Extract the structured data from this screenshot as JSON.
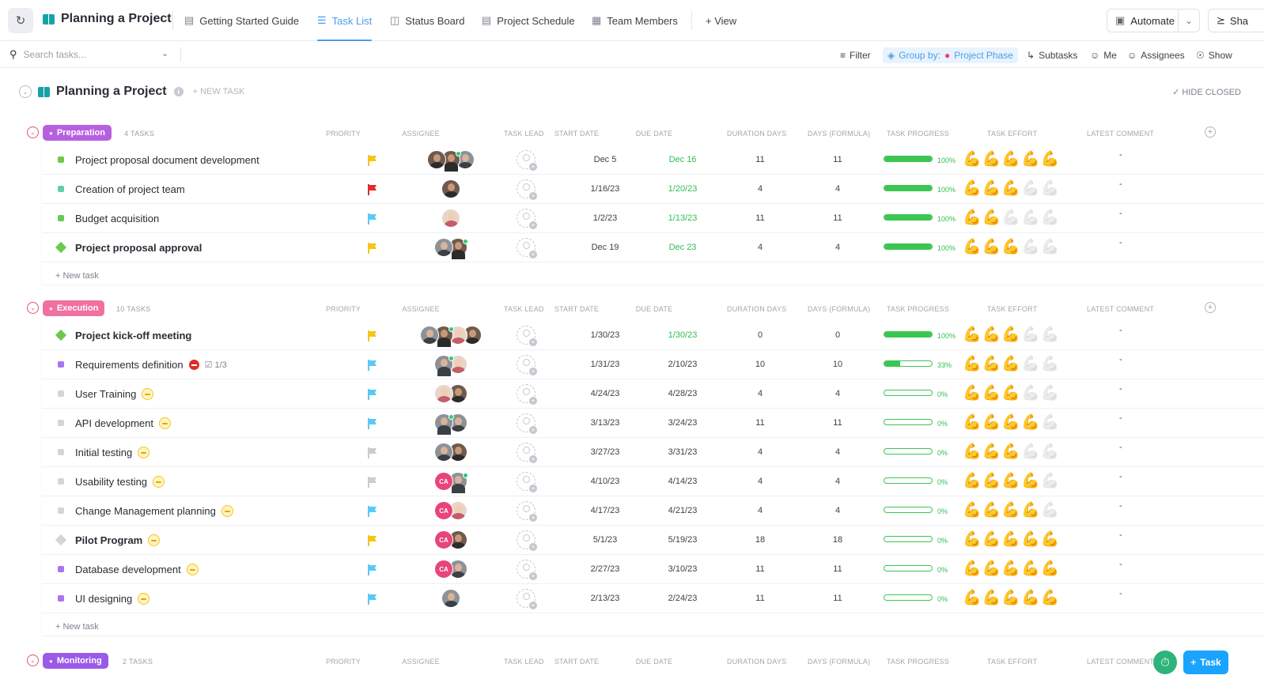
{
  "app": {
    "title": "Planning a Project"
  },
  "tabs": [
    {
      "label": "Getting Started Guide",
      "icon": "doc-icon"
    },
    {
      "label": "Task List",
      "icon": "list-icon",
      "active": true
    },
    {
      "label": "Status Board",
      "icon": "board-icon"
    },
    {
      "label": "Project Schedule",
      "icon": "gantt-icon"
    },
    {
      "label": "Team Members",
      "icon": "table-icon"
    }
  ],
  "add_view_label": "+ View",
  "automate_label": "Automate",
  "share_label": "Sha",
  "toolbar": {
    "search_placeholder": "Search tasks...",
    "filter": "Filter",
    "group_by": "Group by:",
    "group_value": "Project Phase",
    "subtasks": "Subtasks",
    "me": "Me",
    "assignees": "Assignees",
    "show": "Show"
  },
  "list": {
    "title": "Planning a Project",
    "new_task": "+ NEW TASK",
    "hide_closed": "HIDE CLOSED"
  },
  "columns": [
    "PRIORITY",
    "ASSIGNEE",
    "TASK LEAD",
    "START DATE",
    "DUE DATE",
    "DURATION DAYS",
    "DAYS (FORMULA)",
    "TASK PROGRESS",
    "TASK EFFORT",
    "LATEST COMMENT"
  ],
  "colors": {
    "green_date": "#2fbf52",
    "accent": "#4b9ee8"
  },
  "groups": [
    {
      "name": "Preparation",
      "count": "4 TASKS",
      "color": "#b660e0",
      "add_label": "+ New task",
      "tasks": [
        {
          "name": "Project proposal document development",
          "marker": "square",
          "color": "#6bc950",
          "flag": "yellow",
          "assignees": [
            {
              "tone": "dark"
            },
            {
              "tone": "dark",
              "online": true
            },
            {
              "tone": "gray"
            }
          ],
          "start": "Dec 5",
          "due": "Dec 16",
          "due_green": true,
          "duration": "11",
          "formula": "11",
          "progress": 100,
          "pct": "100%",
          "effort": 5,
          "comment": "-"
        },
        {
          "name": "Creation of project team",
          "marker": "square",
          "color": "#5cd2a4",
          "flag": "red",
          "assignees": [
            {
              "tone": "dark"
            }
          ],
          "start": "1/16/23",
          "due": "1/20/23",
          "due_green": true,
          "duration": "4",
          "formula": "4",
          "progress": 100,
          "pct": "100%",
          "effort": 3,
          "comment": "-"
        },
        {
          "name": "Budget acquisition",
          "marker": "square",
          "color": "#6bc950",
          "flag": "blue",
          "assignees": [
            {
              "tone": "light"
            }
          ],
          "start": "1/2/23",
          "due": "1/13/23",
          "due_green": true,
          "duration": "11",
          "formula": "11",
          "progress": 100,
          "pct": "100%",
          "effort": 2,
          "comment": "-"
        },
        {
          "name": "Project proposal approval",
          "marker": "diamond",
          "color": "#6bc950",
          "bold": true,
          "flag": "yellow",
          "assignees": [
            {
              "tone": "gray"
            },
            {
              "tone": "dark",
              "online": true
            }
          ],
          "start": "Dec 19",
          "due": "Dec 23",
          "due_green": true,
          "duration": "4",
          "formula": "4",
          "progress": 100,
          "pct": "100%",
          "effort": 3,
          "comment": "-"
        }
      ]
    },
    {
      "name": "Execution",
      "count": "10 TASKS",
      "color": "#f070a0",
      "add_label": "+ New task",
      "tasks": [
        {
          "name": "Project kick-off meeting",
          "marker": "diamond",
          "color": "#6bc950",
          "bold": true,
          "flag": "yellow",
          "assignees": [
            {
              "tone": "gray"
            },
            {
              "tone": "dark",
              "online": true
            },
            {
              "tone": "light"
            },
            {
              "tone": "dark"
            }
          ],
          "start": "1/30/23",
          "due": "1/30/23",
          "due_green": true,
          "duration": "0",
          "formula": "0",
          "progress": 100,
          "pct": "100%",
          "effort": 3,
          "comment": "-"
        },
        {
          "name": "Requirements definition",
          "marker": "square",
          "color": "#a875f0",
          "flag": "blue",
          "blocked": true,
          "subtasks": "1/3",
          "assignees": [
            {
              "tone": "gray",
              "online": true
            },
            {
              "tone": "light"
            }
          ],
          "start": "1/31/23",
          "due": "2/10/23",
          "duration": "10",
          "formula": "10",
          "progress": 33,
          "pct": "33%",
          "effort": 3,
          "comment": "-"
        },
        {
          "name": "User Training",
          "marker": "square",
          "color": "#d3d5da",
          "flag": "blue",
          "minus": true,
          "assignees": [
            {
              "tone": "light"
            },
            {
              "tone": "dark"
            }
          ],
          "start": "4/24/23",
          "due": "4/28/23",
          "duration": "4",
          "formula": "4",
          "progress": 0,
          "pct": "0%",
          "effort": 3,
          "comment": "-"
        },
        {
          "name": "API development",
          "marker": "square",
          "color": "#d3d5da",
          "flag": "blue",
          "minus": true,
          "assignees": [
            {
              "tone": "gray",
              "online": true
            },
            {
              "tone": "gray"
            }
          ],
          "start": "3/13/23",
          "due": "3/24/23",
          "duration": "11",
          "formula": "11",
          "progress": 0,
          "pct": "0%",
          "effort": 4,
          "comment": "-"
        },
        {
          "name": "Initial testing",
          "marker": "square",
          "color": "#d3d5da",
          "flag": "gray",
          "minus": true,
          "assignees": [
            {
              "tone": "gray"
            },
            {
              "tone": "dark"
            }
          ],
          "start": "3/27/23",
          "due": "3/31/23",
          "duration": "4",
          "formula": "4",
          "progress": 0,
          "pct": "0%",
          "effort": 3,
          "comment": "-"
        },
        {
          "name": "Usability testing",
          "marker": "square",
          "color": "#d3d5da",
          "flag": "gray",
          "minus": true,
          "assignees": [
            {
              "tone": "ca",
              "initials": "CA"
            },
            {
              "tone": "gray",
              "online": true
            }
          ],
          "start": "4/10/23",
          "due": "4/14/23",
          "duration": "4",
          "formula": "4",
          "progress": 0,
          "pct": "0%",
          "effort": 4,
          "comment": "-"
        },
        {
          "name": "Change Management planning",
          "marker": "square",
          "color": "#d3d5da",
          "flag": "blue",
          "minus": true,
          "assignees": [
            {
              "tone": "ca",
              "initials": "CA"
            },
            {
              "tone": "light"
            }
          ],
          "start": "4/17/23",
          "due": "4/21/23",
          "duration": "4",
          "formula": "4",
          "progress": 0,
          "pct": "0%",
          "effort": 4,
          "comment": "-"
        },
        {
          "name": "Pilot Program",
          "marker": "diamond",
          "color": "#d3d5da",
          "bold": true,
          "flag": "yellow",
          "minus": true,
          "assignees": [
            {
              "tone": "ca",
              "initials": "CA"
            },
            {
              "tone": "dark"
            }
          ],
          "start": "5/1/23",
          "due": "5/19/23",
          "duration": "18",
          "formula": "18",
          "progress": 0,
          "pct": "0%",
          "effort": 5,
          "comment": "-"
        },
        {
          "name": "Database development",
          "marker": "square",
          "color": "#a875f0",
          "flag": "blue",
          "minus": true,
          "assignees": [
            {
              "tone": "ca",
              "initials": "CA"
            },
            {
              "tone": "gray"
            }
          ],
          "start": "2/27/23",
          "due": "3/10/23",
          "duration": "11",
          "formula": "11",
          "progress": 0,
          "pct": "0%",
          "effort": 5,
          "comment": "-"
        },
        {
          "name": "UI designing",
          "marker": "square",
          "color": "#a875f0",
          "flag": "blue",
          "minus": true,
          "assignees": [
            {
              "tone": "gray"
            }
          ],
          "start": "2/13/23",
          "due": "2/24/23",
          "duration": "11",
          "formula": "11",
          "progress": 0,
          "pct": "0%",
          "effort": 5,
          "comment": "-"
        }
      ]
    },
    {
      "name": "Monitoring",
      "count": "2 TASKS",
      "color": "#9b59e8",
      "tasks": []
    }
  ],
  "fab": {
    "task_label": "Task"
  }
}
